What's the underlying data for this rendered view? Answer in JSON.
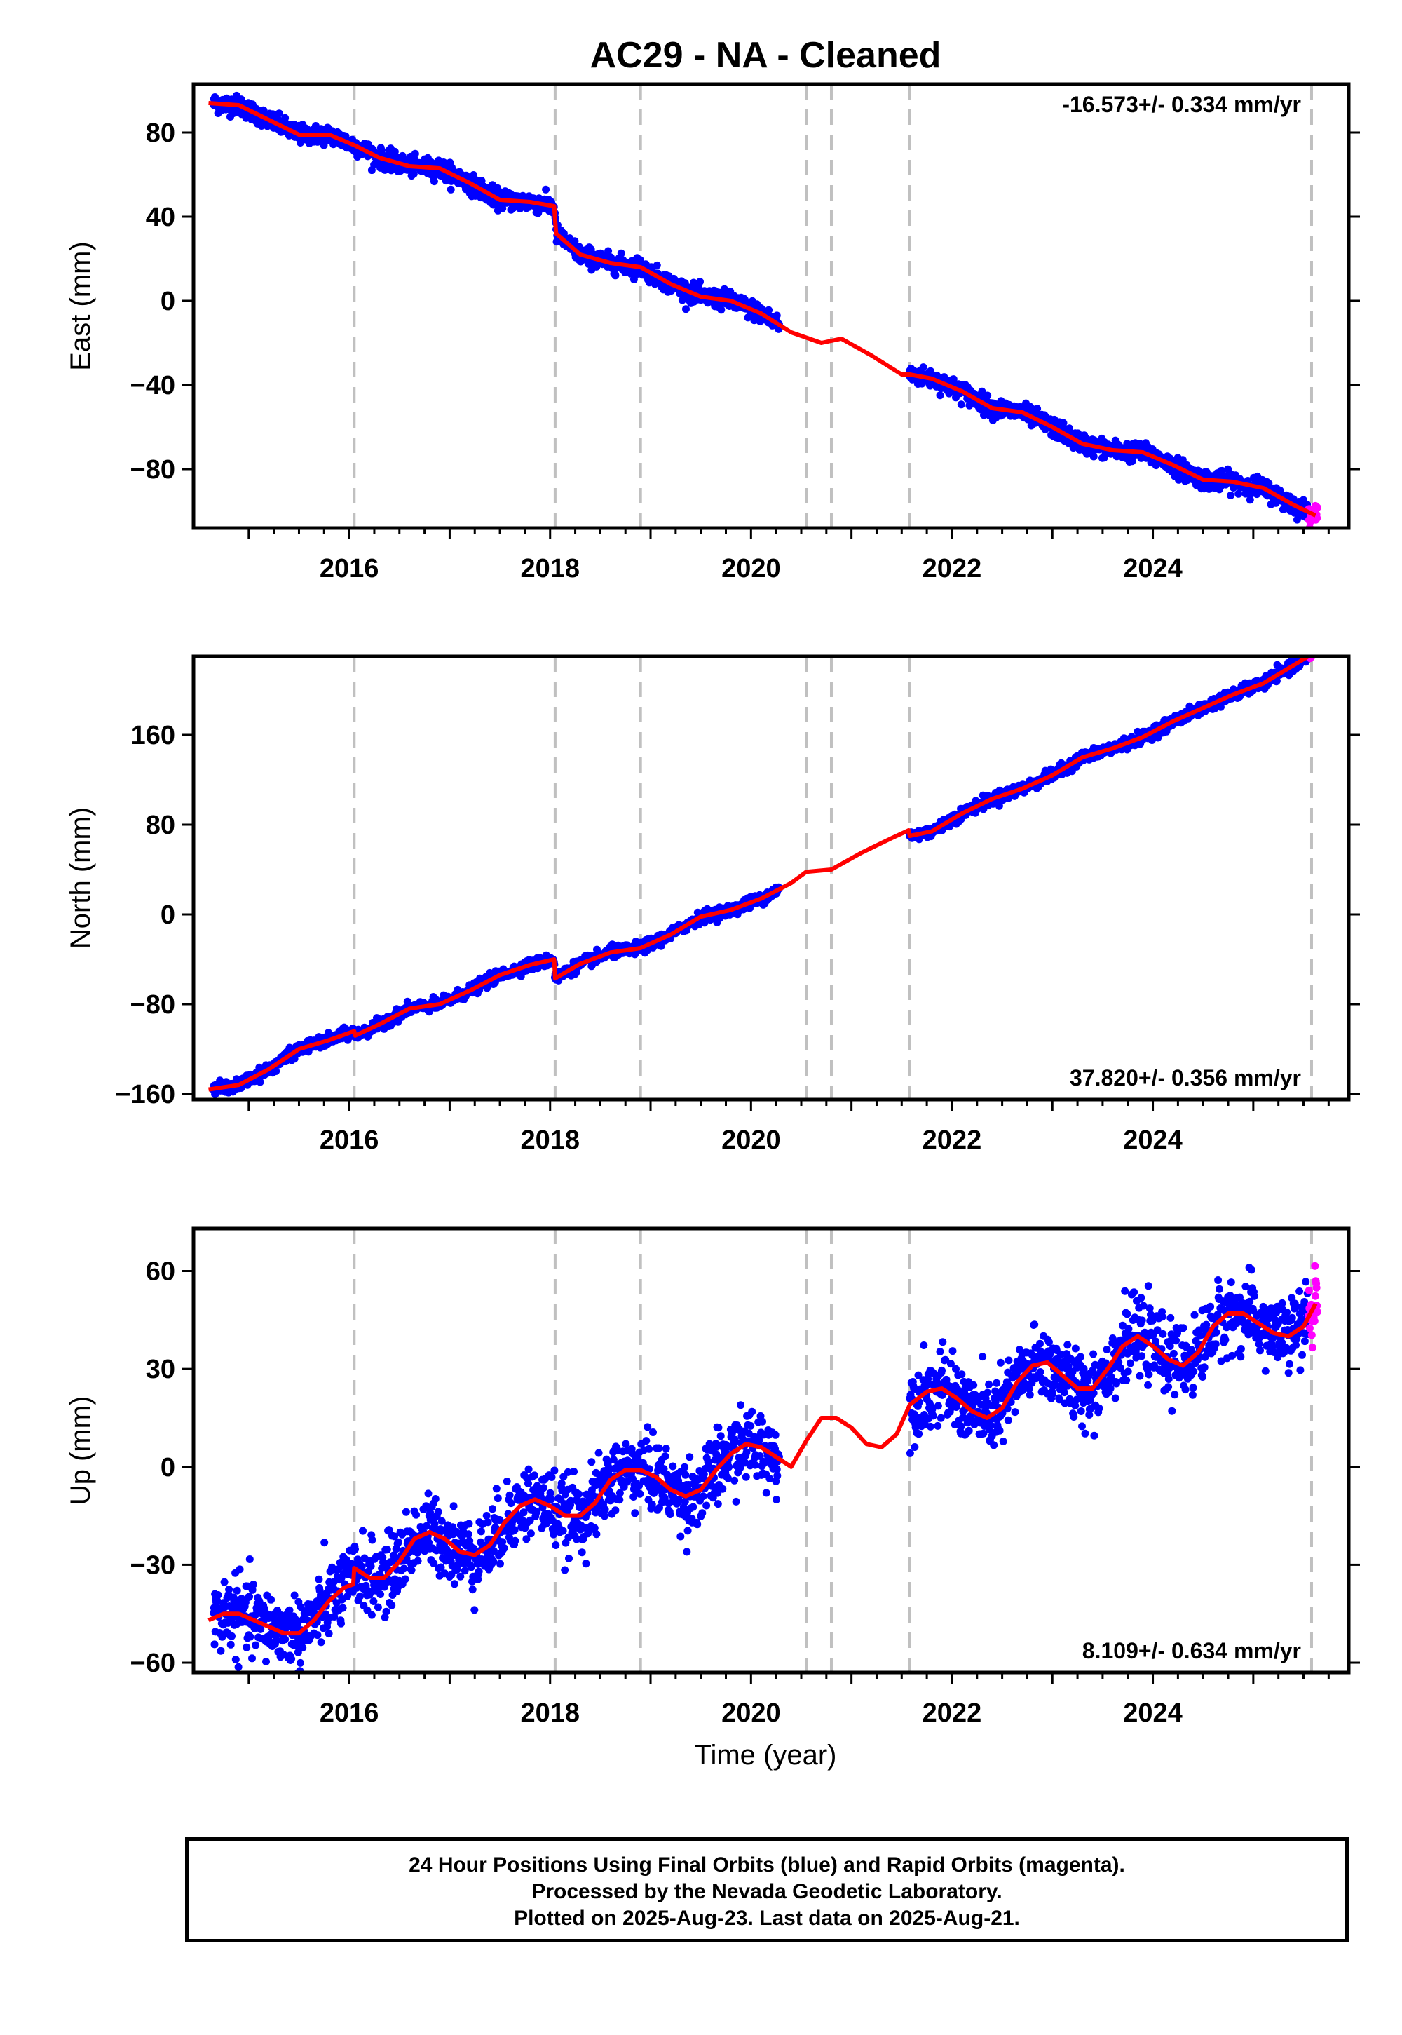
{
  "title": "AC29  - NA - Cleaned",
  "xlabel": "Time (year)",
  "footer": {
    "line1": "24 Hour Positions Using Final Orbits (blue) and Rapid Orbits (magenta).",
    "line2": "Processed by the Nevada Geodetic Laboratory.",
    "line3": "Plotted on 2025-Aug-23. Last data on 2025-Aug-21."
  },
  "colors": {
    "final": "#0000ff",
    "rapid": "#ff00ff",
    "model": "#ff0000",
    "break": "#c0c0c0"
  },
  "chart_data": [
    {
      "type": "scatter",
      "component": "East",
      "ylabel": "East (mm)",
      "rate_label": "-16.573+/- 0.334 mm/yr",
      "rate_position": "top-right",
      "xlim": [
        2014.45,
        2025.95
      ],
      "ylim": [
        -108,
        103
      ],
      "xticks": [
        2016,
        2018,
        2020,
        2022,
        2024
      ],
      "yticks": [
        80,
        40,
        0,
        -40,
        -80
      ],
      "ytick_labels": [
        "80",
        "40",
        "0",
        "−40",
        "−80"
      ],
      "breaks": [
        2016.05,
        2018.05,
        2018.9,
        2020.55,
        2020.8,
        2021.58,
        2025.58
      ],
      "model_line": {
        "x": [
          2014.6,
          2014.9,
          2015.2,
          2015.5,
          2015.8,
          2016.05,
          2016.3,
          2016.6,
          2016.9,
          2017.2,
          2017.5,
          2017.8,
          2018.04,
          2018.06,
          2018.3,
          2018.6,
          2018.9,
          2019.2,
          2019.5,
          2019.8,
          2020.1,
          2020.4,
          2020.7,
          2020.9,
          2021.2,
          2021.5,
          2021.58,
          2021.8,
          2022.1,
          2022.4,
          2022.7,
          2023.0,
          2023.3,
          2023.6,
          2023.9,
          2024.2,
          2024.5,
          2024.8,
          2025.1,
          2025.4,
          2025.62
        ],
        "y": [
          94,
          93,
          86,
          79,
          79,
          74,
          68,
          64,
          63,
          56,
          48,
          47,
          45,
          32,
          22,
          18,
          16,
          8,
          2,
          0,
          -6,
          -15,
          -20,
          -18,
          -26,
          -35,
          -35,
          -37,
          -43,
          -51,
          -53,
          -60,
          -68,
          -71,
          -72,
          -78,
          -85,
          -86,
          -89,
          -97,
          -102
        ]
      },
      "final_segments": [
        [
          2014.65,
          2020.28
        ],
        [
          2021.58,
          2025.55
        ]
      ],
      "final_noise_mm": 2.2,
      "rapid_segment": [
        2025.55,
        2025.64
      ],
      "rapid_noise_mm": 2.5,
      "trend_per_year": -16.573
    },
    {
      "type": "scatter",
      "component": "North",
      "ylabel": "North (mm)",
      "rate_label": "37.820+/- 0.356 mm/yr",
      "rate_position": "bottom-right",
      "xlim": [
        2014.45,
        2025.95
      ],
      "ylim": [
        -165,
        230
      ],
      "xticks": [
        2016,
        2018,
        2020,
        2022,
        2024
      ],
      "yticks": [
        160,
        80,
        0,
        -80,
        -160
      ],
      "ytick_labels": [
        "160",
        "80",
        "0",
        "−80",
        "−160"
      ],
      "breaks": [
        2016.05,
        2018.05,
        2018.9,
        2020.55,
        2020.8,
        2021.58,
        2025.58
      ],
      "model_line": {
        "x": [
          2014.6,
          2014.9,
          2015.2,
          2015.5,
          2015.8,
          2016.05,
          2016.06,
          2016.3,
          2016.6,
          2016.9,
          2017.2,
          2017.5,
          2017.8,
          2018.04,
          2018.05,
          2018.3,
          2018.6,
          2018.9,
          2019.2,
          2019.5,
          2019.8,
          2020.1,
          2020.4,
          2020.55,
          2020.8,
          2021.1,
          2021.4,
          2021.57,
          2021.58,
          2021.8,
          2022.1,
          2022.4,
          2022.7,
          2023.0,
          2023.3,
          2023.6,
          2023.9,
          2024.2,
          2024.5,
          2024.8,
          2025.1,
          2025.4,
          2025.62
        ],
        "y": [
          -156,
          -152,
          -138,
          -120,
          -112,
          -104,
          -108,
          -98,
          -84,
          -80,
          -68,
          -54,
          -45,
          -40,
          -57,
          -44,
          -34,
          -30,
          -18,
          -2,
          4,
          14,
          28,
          38,
          40,
          55,
          68,
          75,
          70,
          74,
          90,
          103,
          112,
          124,
          140,
          148,
          158,
          172,
          184,
          196,
          206,
          222,
          234
        ]
      },
      "final_segments": [
        [
          2014.65,
          2020.28
        ],
        [
          2021.58,
          2025.55
        ]
      ],
      "final_noise_mm": 2.5,
      "rapid_segment": [
        2025.55,
        2025.64
      ],
      "rapid_noise_mm": 2.0,
      "trend_per_year": 37.82
    },
    {
      "type": "scatter",
      "component": "Up",
      "ylabel": "Up (mm)",
      "rate_label": "8.109+/- 0.634 mm/yr",
      "rate_position": "bottom-right",
      "xlim": [
        2014.45,
        2025.95
      ],
      "ylim": [
        -63,
        73
      ],
      "xticks": [
        2016,
        2018,
        2020,
        2022,
        2024
      ],
      "yticks": [
        60,
        30,
        0,
        -30,
        -60
      ],
      "ytick_labels": [
        "60",
        "30",
        "0",
        "−30",
        "−60"
      ],
      "breaks": [
        2016.05,
        2018.05,
        2018.9,
        2020.55,
        2020.8,
        2021.58,
        2025.58
      ],
      "model_line": {
        "x": [
          2014.6,
          2014.75,
          2014.9,
          2015.05,
          2015.2,
          2015.35,
          2015.5,
          2015.65,
          2015.8,
          2015.95,
          2016.04,
          2016.05,
          2016.2,
          2016.35,
          2016.5,
          2016.65,
          2016.8,
          2016.95,
          2017.1,
          2017.25,
          2017.4,
          2017.55,
          2017.7,
          2017.85,
          2018.0,
          2018.15,
          2018.3,
          2018.45,
          2018.6,
          2018.75,
          2018.9,
          2019.05,
          2019.2,
          2019.35,
          2019.5,
          2019.65,
          2019.8,
          2019.95,
          2020.1,
          2020.25,
          2020.4,
          2020.55,
          2020.7,
          2020.85,
          2021.0,
          2021.15,
          2021.3,
          2021.45,
          2021.58,
          2021.75,
          2021.9,
          2022.05,
          2022.2,
          2022.35,
          2022.5,
          2022.65,
          2022.8,
          2022.95,
          2023.1,
          2023.25,
          2023.4,
          2023.55,
          2023.7,
          2023.85,
          2024.0,
          2024.15,
          2024.3,
          2024.45,
          2024.6,
          2024.75,
          2024.9,
          2025.05,
          2025.2,
          2025.35,
          2025.5,
          2025.62
        ],
        "y": [
          -47,
          -45,
          -45,
          -47,
          -49,
          -51,
          -51,
          -47,
          -41,
          -37,
          -36,
          -31,
          -34,
          -34,
          -29,
          -22,
          -20,
          -22,
          -26,
          -27,
          -24,
          -17,
          -12,
          -10,
          -12,
          -15,
          -15,
          -11,
          -4,
          -1,
          -1,
          -3,
          -7,
          -9,
          -7,
          -1,
          4,
          7,
          6,
          3,
          0,
          8,
          15,
          15,
          12,
          7,
          6,
          10,
          19,
          23,
          24,
          21,
          17,
          15,
          18,
          26,
          31,
          32,
          28,
          24,
          24,
          30,
          37,
          40,
          37,
          33,
          31,
          35,
          43,
          47,
          47,
          44,
          41,
          40,
          43,
          50
        ]
      },
      "final_segments": [
        [
          2014.65,
          2020.28
        ],
        [
          2021.58,
          2025.55
        ]
      ],
      "final_noise_mm": 5.5,
      "rapid_segment": [
        2025.55,
        2025.64
      ],
      "rapid_noise_mm": 7.0,
      "trend_per_year": 8.109
    }
  ]
}
